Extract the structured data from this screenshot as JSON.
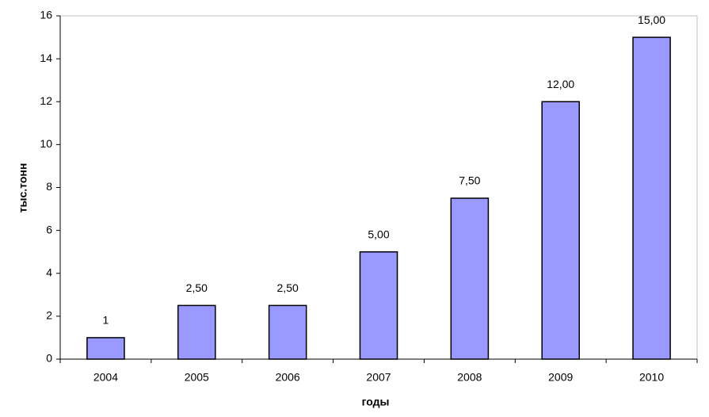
{
  "chart_data": {
    "type": "bar",
    "categories": [
      "2004",
      "2005",
      "2006",
      "2007",
      "2008",
      "2009",
      "2010"
    ],
    "values": [
      1,
      2.5,
      2.5,
      5,
      7.5,
      12,
      15
    ],
    "value_labels": [
      "1",
      "2,50",
      "2,50",
      "5,00",
      "7,50",
      "12,00",
      "15,00"
    ],
    "color": "#9999ff",
    "x_label": "годы",
    "y_label": "тыс.тонн",
    "ylim": [
      0,
      16
    ],
    "yticks": [
      0,
      2,
      4,
      6,
      8,
      10,
      12,
      14,
      16
    ],
    "grid": false
  }
}
